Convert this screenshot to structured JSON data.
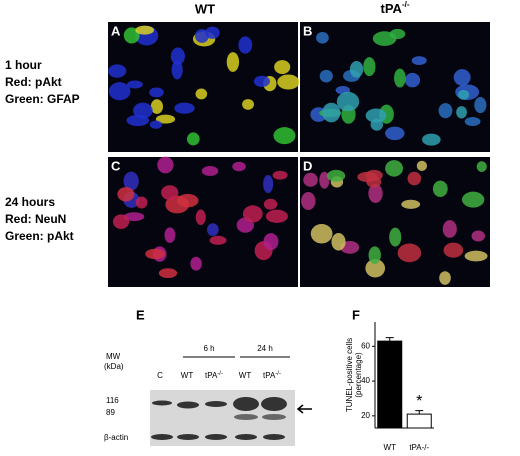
{
  "columns": [
    "WT",
    {
      "base": "tPA",
      "sup": "-/-"
    }
  ],
  "rows": [
    [
      "1 hour",
      "Red: pAkt",
      "Green: GFAP"
    ],
    [
      "24 hours",
      "Red: NeuN",
      "Green: pAkt"
    ]
  ],
  "panels": [
    "A",
    "B",
    "C",
    "D",
    "E",
    "F"
  ],
  "blot": {
    "mw": [
      "MW",
      "(kDa)"
    ],
    "groups": [
      "6 h",
      "24 h"
    ],
    "lanes": [
      "C",
      "WT",
      {
        "base": "tPA",
        "sup": "-/-"
      },
      "WT",
      {
        "base": "tPA",
        "sup": "-/-"
      }
    ],
    "markers": [
      "116",
      "89"
    ],
    "loading": "β-actin"
  },
  "chart_data": {
    "type": "bar",
    "ylabel": [
      "TUNEL-positive cells",
      "(percentage)"
    ],
    "categories": [
      "WT",
      "tPA-/-"
    ],
    "values": [
      63,
      21
    ],
    "errors": [
      2,
      2
    ],
    "colors": [
      "#000000",
      "#ffffff"
    ],
    "ylim": [
      13,
      74
    ],
    "yticks": [
      20,
      40,
      60
    ],
    "annotation": "*"
  }
}
